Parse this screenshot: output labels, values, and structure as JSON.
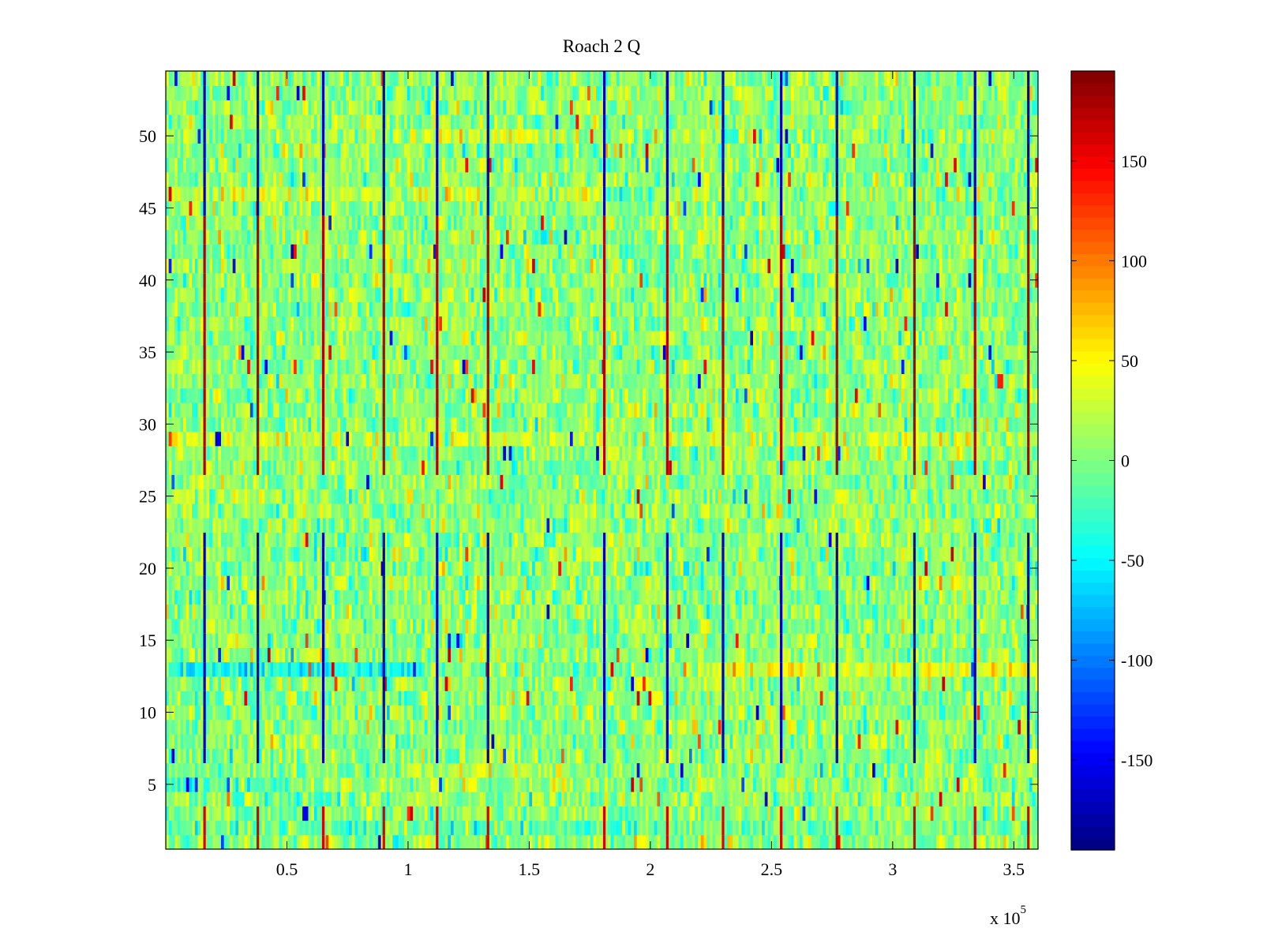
{
  "chart_data": {
    "type": "heatmap",
    "title": "Roach 2 Q",
    "xlabel": "",
    "ylabel": "",
    "x_multiplier_label": "x 10",
    "x_multiplier_exponent": "5",
    "xlim": [
      0,
      360000
    ],
    "ylim": [
      0.5,
      54.5
    ],
    "x_ticks": [
      {
        "value": 50000,
        "label": "0.5"
      },
      {
        "value": 100000,
        "label": "1"
      },
      {
        "value": 150000,
        "label": "1.5"
      },
      {
        "value": 200000,
        "label": "2"
      },
      {
        "value": 250000,
        "label": "2.5"
      },
      {
        "value": 300000,
        "label": "3"
      },
      {
        "value": 350000,
        "label": "3.5"
      }
    ],
    "y_ticks": [
      {
        "value": 5,
        "label": "5"
      },
      {
        "value": 10,
        "label": "10"
      },
      {
        "value": 15,
        "label": "15"
      },
      {
        "value": 20,
        "label": "20"
      },
      {
        "value": 25,
        "label": "25"
      },
      {
        "value": 30,
        "label": "30"
      },
      {
        "value": 35,
        "label": "35"
      },
      {
        "value": 40,
        "label": "40"
      },
      {
        "value": 45,
        "label": "45"
      },
      {
        "value": 50,
        "label": "50"
      }
    ],
    "colormap": "jet",
    "color_range": [
      -195,
      195
    ],
    "colorbar_ticks": [
      {
        "value": 150,
        "label": "150"
      },
      {
        "value": 100,
        "label": "100"
      },
      {
        "value": 50,
        "label": "50"
      },
      {
        "value": 0,
        "label": "0"
      },
      {
        "value": -50,
        "label": "-50"
      },
      {
        "value": -100,
        "label": "-100"
      },
      {
        "value": -150,
        "label": "-150"
      }
    ],
    "rows": 54,
    "background_noise": {
      "mean": 5,
      "std": 25
    },
    "row_offsets": [
      {
        "row": 13,
        "offset": -40,
        "x_range": [
          0,
          105000
        ]
      },
      {
        "row": 13,
        "offset": 35,
        "x_range": [
          220000,
          360000
        ]
      },
      {
        "row": 46,
        "offset": 20,
        "x_range": [
          0,
          180000
        ]
      },
      {
        "row": 50,
        "offset": 25,
        "x_range": [
          100000,
          165000
        ]
      },
      {
        "row": 29,
        "offset": 20,
        "x_range": [
          0,
          360000
        ]
      },
      {
        "row": 25,
        "offset": 15,
        "x_range": [
          0,
          60000
        ]
      },
      {
        "row": 6,
        "offset": 20,
        "x_range": [
          95000,
          165000
        ]
      },
      {
        "row": 5,
        "offset": -25,
        "x_range": [
          0,
          60000
        ]
      },
      {
        "row": 2,
        "offset": -15,
        "x_range": [
          0,
          360000
        ]
      },
      {
        "row": 19,
        "offset": 15,
        "x_range": [
          310000,
          345000
        ]
      }
    ],
    "pulse_columns": [
      16000,
      38000,
      65000,
      90000,
      112000,
      133000,
      181000,
      207000,
      230000,
      254000,
      277000,
      309000,
      334000,
      356000
    ],
    "pulse_segments": [
      {
        "y_range": [
          45,
          54
        ],
        "value": -175
      },
      {
        "y_range": [
          27,
          44
        ],
        "value": 175
      },
      {
        "y_range": [
          7,
          22
        ],
        "value": -175
      },
      {
        "y_range": [
          1,
          3
        ],
        "value": 160
      }
    ]
  }
}
